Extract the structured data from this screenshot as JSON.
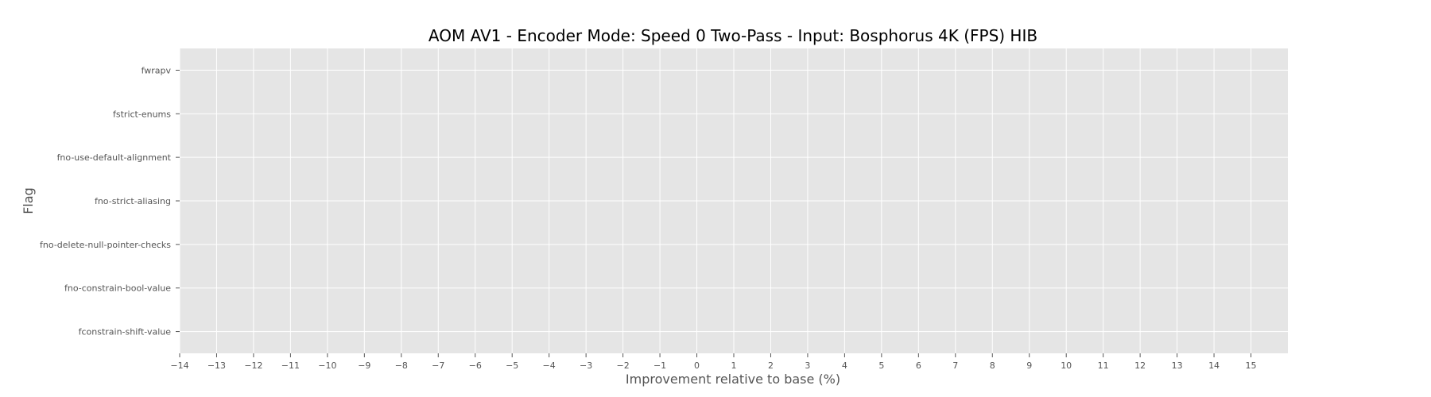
{
  "chart_data": {
    "type": "bar",
    "orientation": "horizontal",
    "title": "AOM AV1 - Encoder Mode: Speed 0 Two-Pass - Input: Bosphorus 4K (FPS) HIB",
    "xlabel": "Improvement relative to base (%)",
    "ylabel": "Flag",
    "categories": [
      "fwrapv",
      "fstrict-enums",
      "fno-use-default-alignment",
      "fno-strict-aliasing",
      "fno-delete-null-pointer-checks",
      "fno-constrain-bool-value",
      "fconstrain-shift-value"
    ],
    "values": [
      null,
      null,
      null,
      null,
      null,
      null,
      null
    ],
    "xlim": [
      -14,
      16
    ],
    "xticks": [
      -14,
      -13,
      -12,
      -11,
      -10,
      -9,
      -8,
      -7,
      -6,
      -5,
      -4,
      -3,
      -2,
      -1,
      0,
      1,
      2,
      3,
      4,
      5,
      6,
      7,
      8,
      9,
      10,
      11,
      12,
      13,
      14,
      15
    ],
    "grid": true,
    "colors": {
      "plot_background": "#e5e5e5",
      "grid": "#ffffff",
      "text": "#555555",
      "title": "#000000"
    }
  }
}
